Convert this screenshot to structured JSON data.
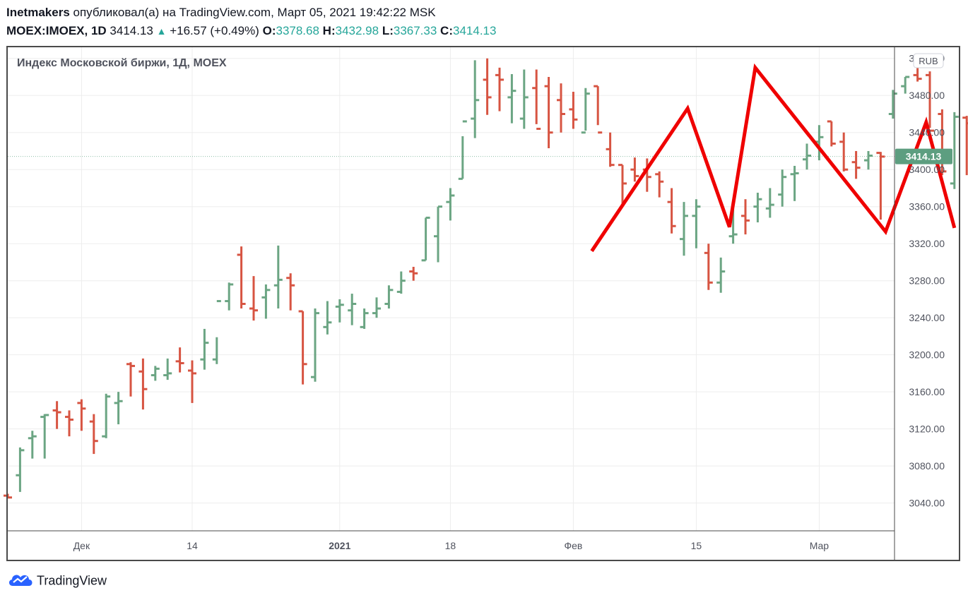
{
  "header": {
    "author": "Inetmakers",
    "published_text": "опубликовал(а) на TradingView.com, Март 05, 2021 19:42:22 MSK",
    "symbol": "MOEX:IMOEX, 1D",
    "last": "3414.13",
    "change": "+16.57 (+0.49%)",
    "o_label": "O:",
    "o_value": "3378.68",
    "h_label": "H:",
    "h_value": "3432.98",
    "l_label": "L:",
    "l_value": "3367.33",
    "c_label": "C:",
    "c_value": "3414.13"
  },
  "chart_title": "Индекс Московской биржи, 1Д, MOEX",
  "currency": "RUB",
  "last_price_label": "3414.13",
  "footer_brand": "TradingView",
  "colors": {
    "up": "#6ba583",
    "down": "#d75442",
    "annotation": "#ef0000",
    "price_tag": "#5d9e80",
    "grid": "#ededed"
  },
  "chart_data": {
    "type": "ohlc",
    "title": "Индекс Московской биржи, 1Д, MOEX",
    "ylim": [
      3010,
      3532
    ],
    "y_ticks": [
      3040,
      3080,
      3120,
      3160,
      3200,
      3240,
      3280,
      3320,
      3360,
      3400,
      3440,
      3480,
      3520
    ],
    "y_tick_labels": [
      "3040.00",
      "3080.00",
      "3120.00",
      "3160.00",
      "3200.00",
      "3240.00",
      "3280.00",
      "3320.00",
      "3360.00",
      "3400.00",
      "3440.00",
      "3480.00",
      "3520.00"
    ],
    "x_tick_labels": [
      {
        "label": "Дек",
        "index": 6
      },
      {
        "label": "14",
        "index": 15
      },
      {
        "label": "2021",
        "index": 27
      },
      {
        "label": "18",
        "index": 36
      },
      {
        "label": "Фев",
        "index": 46
      },
      {
        "label": "15",
        "index": 56
      },
      {
        "label": "Мар",
        "index": 66
      }
    ],
    "last_price": 3414.13,
    "bars": [
      [
        3048,
        3050,
        3045,
        3046
      ],
      [
        3070,
        3100,
        3052,
        3097
      ],
      [
        3110,
        3118,
        3088,
        3112
      ],
      [
        3133,
        3136,
        3088,
        3135
      ],
      [
        3140,
        3150,
        3120,
        3138
      ],
      [
        3133,
        3140,
        3112,
        3130
      ],
      [
        3148,
        3152,
        3118,
        3142
      ],
      [
        3128,
        3136,
        3093,
        3107
      ],
      [
        3112,
        3158,
        3110,
        3155
      ],
      [
        3148,
        3160,
        3125,
        3150
      ],
      [
        3190,
        3192,
        3155,
        3188
      ],
      [
        3182,
        3196,
        3141,
        3163
      ],
      [
        3178,
        3188,
        3172,
        3185
      ],
      [
        3178,
        3196,
        3173,
        3180
      ],
      [
        3193,
        3208,
        3181,
        3191
      ],
      [
        3183,
        3194,
        3148,
        3180
      ],
      [
        3195,
        3228,
        3184,
        3213
      ],
      [
        3195,
        3219,
        3190,
        3258
      ],
      [
        3258,
        3278,
        3248,
        3276
      ],
      [
        3308,
        3317,
        3250,
        3255
      ],
      [
        3250,
        3285,
        3237,
        3248
      ],
      [
        3262,
        3276,
        3239,
        3270
      ],
      [
        3275,
        3318,
        3250,
        3281
      ],
      [
        3283,
        3288,
        3248,
        3275
      ],
      [
        3247,
        3247,
        3168,
        3190
      ],
      [
        3176,
        3250,
        3171,
        3245
      ],
      [
        3230,
        3258,
        3222,
        3235
      ],
      [
        3252,
        3260,
        3235,
        3254
      ],
      [
        3248,
        3266,
        3232,
        3255
      ],
      [
        3230,
        3250,
        3228,
        3245
      ],
      [
        3245,
        3262,
        3240,
        3250
      ],
      [
        3255,
        3275,
        3250,
        3270
      ],
      [
        3268,
        3290,
        3266,
        3280
      ],
      [
        3290,
        3295,
        3280,
        3288
      ],
      [
        3302,
        3348,
        3302,
        3348
      ],
      [
        3328,
        3360,
        3300,
        3360
      ],
      [
        3365,
        3380,
        3345,
        3372
      ],
      [
        3390,
        3436,
        3390,
        3452
      ],
      [
        3455,
        3518,
        3434,
        3475
      ],
      [
        3497,
        3520,
        3459,
        3478
      ],
      [
        3502,
        3510,
        3463,
        3497
      ],
      [
        3478,
        3503,
        3450,
        3485
      ],
      [
        3455,
        3508,
        3444,
        3478
      ],
      [
        3488,
        3508,
        3449,
        3444
      ],
      [
        3490,
        3500,
        3423,
        3440
      ],
      [
        3475,
        3493,
        3440,
        3460
      ],
      [
        3465,
        3484,
        3444,
        3454
      ],
      [
        3440,
        3488,
        3442,
        3482
      ],
      [
        3490,
        3490,
        3448,
        3440
      ],
      [
        3422,
        3440,
        3403,
        3405
      ],
      [
        3405,
        3405,
        3360,
        3385
      ],
      [
        3400,
        3413,
        3387,
        3393
      ],
      [
        3400,
        3412,
        3376,
        3392
      ],
      [
        3395,
        3398,
        3370,
        3387
      ],
      [
        3365,
        3380,
        3331,
        3339
      ],
      [
        3325,
        3365,
        3307,
        3350
      ],
      [
        3350,
        3368,
        3315,
        3360
      ],
      [
        3310,
        3320,
        3270,
        3278
      ],
      [
        3278,
        3305,
        3267,
        3290
      ],
      [
        3328,
        3366,
        3320,
        3330
      ],
      [
        3350,
        3368,
        3330,
        3345
      ],
      [
        3360,
        3375,
        3343,
        3368
      ],
      [
        3358,
        3380,
        3348,
        3362
      ],
      [
        3373,
        3400,
        3360,
        3392
      ],
      [
        3395,
        3404,
        3366,
        3396
      ],
      [
        3411,
        3428,
        3400,
        3415
      ],
      [
        3430,
        3448,
        3410,
        3435
      ],
      [
        3452,
        3452,
        3425,
        3428
      ],
      [
        3430,
        3440,
        3398,
        3400
      ],
      [
        3408,
        3420,
        3390,
        3402
      ],
      [
        3410,
        3420,
        3400,
        3415
      ],
      [
        3418,
        3419,
        3346,
        3414
      ],
      [
        3460,
        3486,
        3455,
        3482
      ],
      [
        3490,
        3500,
        3482,
        3500
      ],
      [
        3502,
        3510,
        3495,
        3498
      ],
      [
        3502,
        3506,
        3445,
        3442
      ],
      [
        3460,
        3465,
        3394,
        3398
      ],
      [
        3385,
        3462,
        3379,
        3457
      ],
      [
        3456,
        3458,
        3394,
        3450
      ],
      [
        3450,
        3460,
        3412,
        3444
      ],
      [
        3448,
        3448,
        3405,
        3420
      ],
      [
        3428,
        3440,
        3384,
        3410
      ],
      [
        3410,
        3420,
        3370,
        3402
      ],
      [
        3410,
        3430,
        3386,
        3405
      ],
      [
        3380,
        3380,
        3332,
        3340
      ],
      [
        3346,
        3350,
        3354,
        3379
      ],
      [
        3360,
        3385,
        3350,
        3382
      ],
      [
        3392,
        3396,
        3376,
        3388
      ],
      [
        3380,
        3430,
        3378,
        3420
      ],
      [
        3420,
        3440,
        3412,
        3415
      ],
      [
        3420,
        3424,
        3364,
        3400
      ],
      [
        3378.68,
        3432.98,
        3367.33,
        3414.13
      ]
    ],
    "annotation_polyline": [
      {
        "i": 47.5,
        "v": 3312
      },
      {
        "i": 55.3,
        "v": 3466
      },
      {
        "i": 58.7,
        "v": 3338
      },
      {
        "i": 60.8,
        "v": 3510
      },
      {
        "i": 71.4,
        "v": 3333
      },
      {
        "i": 74.7,
        "v": 3451
      },
      {
        "i": 77.0,
        "v": 3337
      }
    ]
  }
}
